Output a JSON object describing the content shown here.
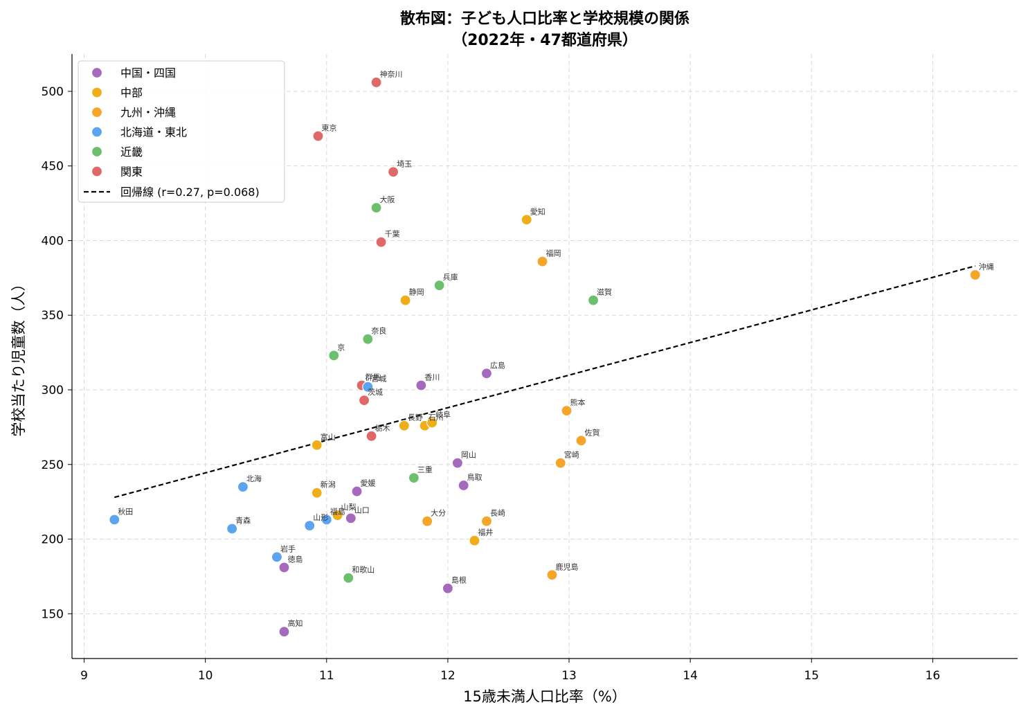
{
  "chart_data": {
    "type": "scatter",
    "title_line1": "散布図：子ども人口比率と学校規模の関係",
    "title_line2": "（2022年・47都道府県）",
    "xlabel": "15歳未満人口比率（%）",
    "ylabel": "学校当たり児童数（人）",
    "xlim": [
      8.9,
      16.7
    ],
    "ylim": [
      120,
      525
    ],
    "xticks": [
      9,
      10,
      11,
      12,
      13,
      14,
      15,
      16
    ],
    "yticks": [
      150,
      200,
      250,
      300,
      350,
      400,
      450,
      500
    ],
    "grid": true,
    "legend_position": "top-left",
    "groups": [
      {
        "name": "中国・四国",
        "color": "#a569bd"
      },
      {
        "name": "中部",
        "color": "#f0ad1a"
      },
      {
        "name": "九州・沖縄",
        "color": "#f5a52a"
      },
      {
        "name": "北海道・東北",
        "color": "#5ba4f0"
      },
      {
        "name": "近畿",
        "color": "#6cbf6c"
      },
      {
        "name": "関東",
        "color": "#e06868"
      }
    ],
    "regression": {
      "label": "回帰線 (r=0.27, p=0.068)",
      "x": [
        9.25,
        16.35
      ],
      "y": [
        228,
        383
      ],
      "color": "#000000"
    },
    "points": [
      {
        "label": "神奈川",
        "x": 11.41,
        "y": 506,
        "group": 5
      },
      {
        "label": "東京",
        "x": 10.93,
        "y": 470,
        "group": 5
      },
      {
        "label": "埼玉",
        "x": 11.55,
        "y": 446,
        "group": 5
      },
      {
        "label": "千葉",
        "x": 11.45,
        "y": 399,
        "group": 5
      },
      {
        "label": "群馬",
        "x": 11.29,
        "y": 303,
        "group": 5
      },
      {
        "label": "茨城",
        "x": 11.31,
        "y": 293,
        "group": 5
      },
      {
        "label": "栃木",
        "x": 11.37,
        "y": 269,
        "group": 5
      },
      {
        "label": "大阪",
        "x": 11.41,
        "y": 422,
        "group": 4
      },
      {
        "label": "兵庫",
        "x": 11.93,
        "y": 370,
        "group": 4
      },
      {
        "label": "滋賀",
        "x": 13.2,
        "y": 360,
        "group": 4
      },
      {
        "label": "奈良",
        "x": 11.34,
        "y": 334,
        "group": 4
      },
      {
        "label": "京",
        "x": 11.06,
        "y": 323,
        "group": 4
      },
      {
        "label": "三重",
        "x": 11.72,
        "y": 241,
        "group": 4
      },
      {
        "label": "和歌山",
        "x": 11.18,
        "y": 174,
        "group": 4
      },
      {
        "label": "宮城",
        "x": 11.34,
        "y": 302,
        "group": 3
      },
      {
        "label": "北海",
        "x": 10.31,
        "y": 235,
        "group": 3
      },
      {
        "label": "秋田",
        "x": 9.25,
        "y": 213,
        "group": 3
      },
      {
        "label": "青森",
        "x": 10.22,
        "y": 207,
        "group": 3
      },
      {
        "label": "山形",
        "x": 10.86,
        "y": 209,
        "group": 3
      },
      {
        "label": "福島",
        "x": 11.0,
        "y": 213,
        "group": 3
      },
      {
        "label": "岩手",
        "x": 10.59,
        "y": 188,
        "group": 3
      },
      {
        "label": "愛知",
        "x": 12.65,
        "y": 414,
        "group": 1
      },
      {
        "label": "静岡",
        "x": 11.65,
        "y": 360,
        "group": 1
      },
      {
        "label": "長野",
        "x": 11.64,
        "y": 276,
        "group": 1
      },
      {
        "label": "石川",
        "x": 11.81,
        "y": 276,
        "group": 1
      },
      {
        "label": "岐阜",
        "x": 11.87,
        "y": 278,
        "group": 1
      },
      {
        "label": "富山",
        "x": 10.92,
        "y": 263,
        "group": 1
      },
      {
        "label": "新潟",
        "x": 10.92,
        "y": 231,
        "group": 1
      },
      {
        "label": "山梨",
        "x": 11.09,
        "y": 216,
        "group": 1
      },
      {
        "label": "福井",
        "x": 12.22,
        "y": 199,
        "group": 1
      },
      {
        "label": "福岡",
        "x": 12.78,
        "y": 386,
        "group": 2
      },
      {
        "label": "沖縄",
        "x": 16.35,
        "y": 377,
        "group": 2
      },
      {
        "label": "熊本",
        "x": 12.98,
        "y": 286,
        "group": 2
      },
      {
        "label": "佐賀",
        "x": 13.1,
        "y": 266,
        "group": 2
      },
      {
        "label": "宮崎",
        "x": 12.93,
        "y": 251,
        "group": 2
      },
      {
        "label": "大分",
        "x": 11.83,
        "y": 212,
        "group": 2
      },
      {
        "label": "長崎",
        "x": 12.32,
        "y": 212,
        "group": 2
      },
      {
        "label": "鹿児島",
        "x": 12.86,
        "y": 176,
        "group": 2
      },
      {
        "label": "広島",
        "x": 12.32,
        "y": 311,
        "group": 0
      },
      {
        "label": "香川",
        "x": 11.78,
        "y": 303,
        "group": 0
      },
      {
        "label": "岡山",
        "x": 12.08,
        "y": 251,
        "group": 0
      },
      {
        "label": "鳥取",
        "x": 12.13,
        "y": 236,
        "group": 0
      },
      {
        "label": "愛媛",
        "x": 11.25,
        "y": 232,
        "group": 0
      },
      {
        "label": "山口",
        "x": 11.2,
        "y": 214,
        "group": 0
      },
      {
        "label": "徳島",
        "x": 10.65,
        "y": 181,
        "group": 0
      },
      {
        "label": "島根",
        "x": 12.0,
        "y": 167,
        "group": 0
      },
      {
        "label": "高知",
        "x": 10.65,
        "y": 138,
        "group": 0
      }
    ]
  }
}
